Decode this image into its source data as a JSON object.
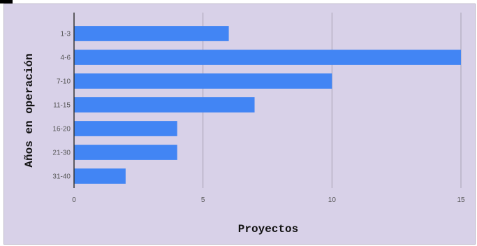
{
  "chart_data": {
    "type": "bar",
    "orientation": "horizontal",
    "categories": [
      "1-3",
      "4-6",
      "7-10",
      "11-15",
      "16-20",
      "21-30",
      "31-40"
    ],
    "values": [
      6,
      15,
      10,
      7,
      4,
      4,
      2
    ],
    "xlabel": "Proyectos",
    "ylabel": "Años en operación",
    "xlim": [
      0,
      15
    ],
    "xticks": [
      "0",
      "5",
      "10",
      "15"
    ],
    "grid": true,
    "legend": "none",
    "colors": {
      "bar": "#4285f4",
      "background": "#d8d1e8",
      "grid": "#a8a2b3",
      "axis": "#333333"
    }
  }
}
